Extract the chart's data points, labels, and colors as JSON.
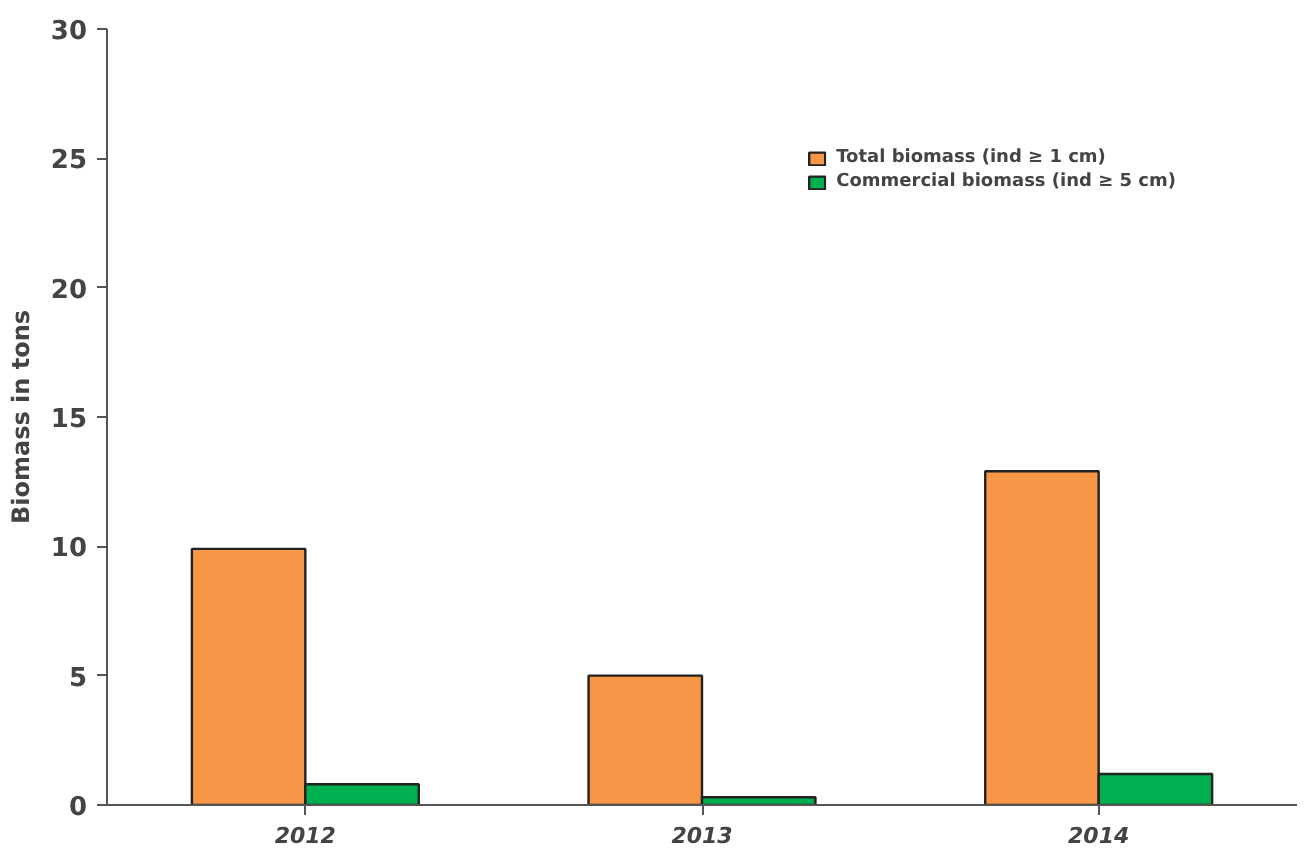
{
  "chart_data": {
    "type": "bar",
    "ylabel": "Biomass in tons",
    "categories": [
      "2012",
      "2013",
      "2014"
    ],
    "series": [
      {
        "name": "Total biomass (ind ≥ 1 cm)",
        "color": "#f79646",
        "values": [
          9.9,
          5.0,
          12.9
        ]
      },
      {
        "name": "Commercial biomass (ind ≥ 5 cm)",
        "color": "#00b050",
        "values": [
          0.8,
          0.3,
          1.2
        ]
      }
    ],
    "ylim": [
      0,
      30
    ],
    "yticks": [
      0,
      5,
      10,
      15,
      20,
      25,
      30
    ],
    "grid": false,
    "legend": "top right"
  }
}
